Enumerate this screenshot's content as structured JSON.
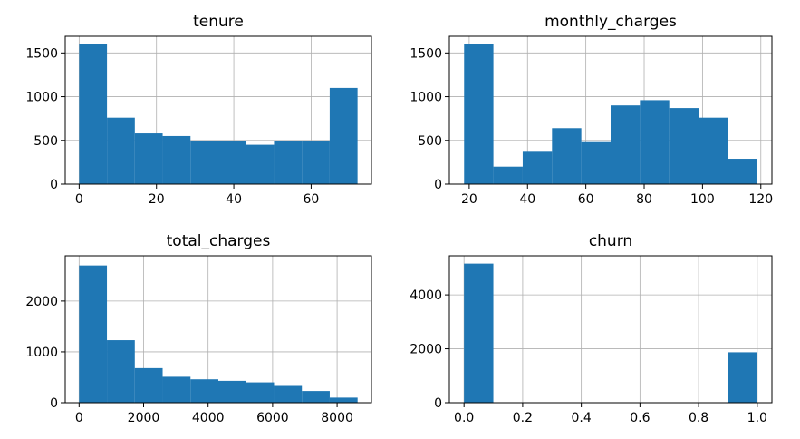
{
  "chart_data": [
    {
      "type": "bar",
      "title": "tenure",
      "xlabel": "",
      "ylabel": "",
      "xlim": [
        -3.6,
        75.6
      ],
      "ylim": [
        0,
        1690
      ],
      "xticks": [
        "0",
        "20",
        "40",
        "60"
      ],
      "yticks": [
        "0",
        "500",
        "1000",
        "1500"
      ],
      "grid": true,
      "bin_edges": [
        0,
        7.2,
        14.4,
        21.6,
        28.8,
        36,
        43.2,
        50.4,
        57.6,
        64.8,
        72
      ],
      "values": [
        1600,
        760,
        580,
        550,
        490,
        490,
        450,
        490,
        490,
        1100
      ]
    },
    {
      "type": "bar",
      "title": "monthly_charges",
      "xlabel": "",
      "ylabel": "",
      "xlim": [
        13.2,
        123.8
      ],
      "ylim": [
        0,
        1690
      ],
      "xticks": [
        "20",
        "40",
        "60",
        "80",
        "100",
        "120"
      ],
      "yticks": [
        "0",
        "500",
        "1000",
        "1500"
      ],
      "grid": true,
      "bin_edges": [
        18.25,
        28.3,
        38.35,
        48.4,
        58.45,
        68.5,
        78.55,
        88.6,
        98.65,
        108.7,
        118.75
      ],
      "values": [
        1600,
        200,
        370,
        640,
        480,
        900,
        960,
        870,
        760,
        290
      ]
    },
    {
      "type": "bar",
      "title": "total_charges",
      "xlabel": "",
      "ylabel": "",
      "xlim": [
        -430,
        9065
      ],
      "ylim": [
        0,
        2890
      ],
      "xticks": [
        "0",
        "2000",
        "4000",
        "6000",
        "8000"
      ],
      "yticks": [
        "0",
        "1000",
        "2000"
      ],
      "grid": true,
      "bin_edges": [
        0,
        863.5,
        1727,
        2590.5,
        3454,
        4317.5,
        5181,
        6044.5,
        6908,
        7771.5,
        8635
      ],
      "values": [
        2700,
        1230,
        680,
        510,
        460,
        430,
        400,
        330,
        230,
        100
      ]
    },
    {
      "type": "bar",
      "title": "churn",
      "xlabel": "",
      "ylabel": "",
      "xlim": [
        -0.05,
        1.05
      ],
      "ylim": [
        0,
        5450
      ],
      "xticks": [
        "0.0",
        "0.2",
        "0.4",
        "0.6",
        "0.8",
        "1.0"
      ],
      "yticks": [
        "0",
        "2000",
        "4000"
      ],
      "grid": true,
      "bin_edges": [
        0,
        0.1,
        0.2,
        0.3,
        0.4,
        0.5,
        0.6,
        0.7,
        0.8,
        0.9,
        1.0
      ],
      "values": [
        5160,
        0,
        0,
        0,
        0,
        0,
        0,
        0,
        0,
        1870
      ]
    }
  ],
  "colors": {
    "bar": "#1f77b4",
    "grid": "#b0b0b0",
    "axis": "#000000",
    "background": "#ffffff"
  }
}
